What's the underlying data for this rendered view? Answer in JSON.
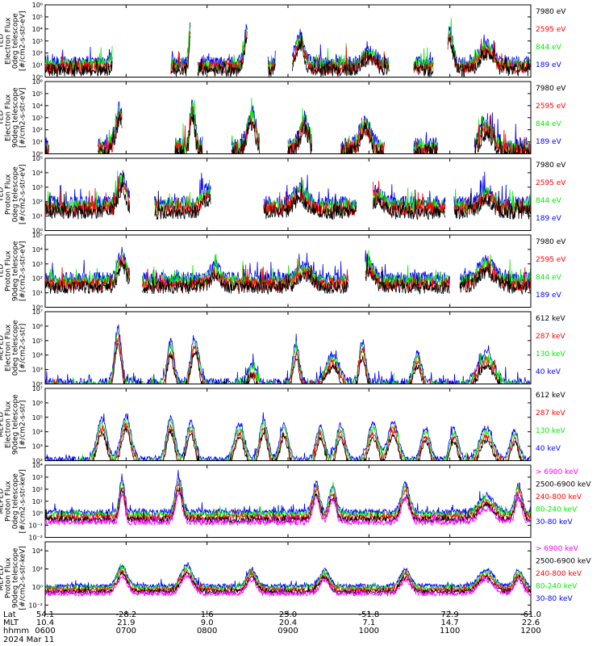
{
  "figure": {
    "date": "2024 Mar 11",
    "colors": {
      "black": "#000000",
      "red": "#ff0000",
      "green": "#00ee00",
      "blue": "#0000ff",
      "magenta": "#ff00ff",
      "axis": "#000000"
    }
  },
  "x_axis": {
    "row_labels": [
      "Lat",
      "MLT",
      "hhmm"
    ],
    "ticks": [
      {
        "lat": "54.1",
        "mlt": "10.4",
        "time": "0600"
      },
      {
        "lat": "-28.2",
        "mlt": "21.9",
        "time": "0700"
      },
      {
        "lat": "1.6",
        "mlt": "9.0",
        "time": "0800"
      },
      {
        "lat": "25.0",
        "mlt": "20.4",
        "time": "0900"
      },
      {
        "lat": "-51.8",
        "mlt": "7.1",
        "time": "1000"
      },
      {
        "lat": "72.9",
        "mlt": "14.7",
        "time": "1100"
      },
      {
        "lat": "-61.0",
        "mlt": "22.6",
        "time": "1200"
      }
    ]
  },
  "chart_data": [
    {
      "type": "line",
      "ylabel_lines": [
        "TED",
        "Electron Flux",
        "0deg telescope",
        "[#/cm2-s-str-eV]"
      ],
      "y_scale": "log",
      "ylim_exp": [
        0,
        6
      ],
      "ytick_labels": [
        "10⁰",
        "10¹",
        "10²",
        "10³",
        "10⁴",
        "10⁵",
        "10⁶"
      ],
      "series": [
        {
          "name": "7980 eV",
          "color": "black"
        },
        {
          "name": "2595 eV",
          "color": "red"
        },
        {
          "name": "844 eV",
          "color": "green"
        },
        {
          "name": "189 eV",
          "color": "blue"
        }
      ],
      "x_hours": [
        6,
        12
      ],
      "baseline_exp": 1.2,
      "noise": 0.55,
      "gaps": [
        [
          6.83,
          7.55
        ],
        [
          7.8,
          7.88
        ],
        [
          8.5,
          8.75
        ],
        [
          8.85,
          9.05
        ],
        [
          10.25,
          10.55
        ],
        [
          10.8,
          10.97
        ]
      ],
      "peaks": [
        {
          "t": 6.92,
          "amp": 2.8,
          "w": 0.05
        },
        {
          "t": 7.8,
          "amp": 3.4,
          "w": 0.02
        },
        {
          "t": 8.5,
          "amp": 2.9,
          "w": 0.04
        },
        {
          "t": 9.15,
          "amp": 2.3,
          "w": 0.05
        },
        {
          "t": 10.0,
          "amp": 1.0,
          "w": 0.08
        },
        {
          "t": 11.0,
          "amp": 2.6,
          "w": 0.04
        },
        {
          "t": 11.45,
          "amp": 1.5,
          "w": 0.08
        }
      ]
    },
    {
      "type": "line",
      "ylabel_lines": [
        "TED",
        "Electron Flux",
        "90deg telescope",
        "[#/cm2-s-str-eV]"
      ],
      "y_scale": "log",
      "ylim_exp": [
        0,
        6
      ],
      "ytick_labels": [
        "10⁰",
        "10¹",
        "10²",
        "10³",
        "10⁴",
        "10⁵",
        "10⁶"
      ],
      "series": [
        {
          "name": "7980 eV",
          "color": "black"
        },
        {
          "name": "2595 eV",
          "color": "red"
        },
        {
          "name": "844 eV",
          "color": "green"
        },
        {
          "name": "189 eV",
          "color": "blue"
        }
      ],
      "x_hours": [
        6,
        12
      ],
      "baseline_exp": 0.7,
      "noise": 0.7,
      "gaps": [
        [
          6.05,
          6.65
        ],
        [
          6.95,
          7.6
        ],
        [
          7.95,
          8.3
        ],
        [
          8.65,
          9.0
        ],
        [
          9.3,
          9.65
        ],
        [
          10.2,
          10.55
        ],
        [
          10.85,
          11.3
        ]
      ],
      "peaks": [
        {
          "t": 6.92,
          "amp": 3.0,
          "w": 0.05
        },
        {
          "t": 7.82,
          "amp": 3.5,
          "w": 0.03
        },
        {
          "t": 8.55,
          "amp": 2.8,
          "w": 0.05
        },
        {
          "t": 9.2,
          "amp": 2.3,
          "w": 0.05
        },
        {
          "t": 9.95,
          "amp": 2.1,
          "w": 0.06
        },
        {
          "t": 11.0,
          "amp": 3.0,
          "w": 0.04
        },
        {
          "t": 11.45,
          "amp": 1.9,
          "w": 0.08
        }
      ]
    },
    {
      "type": "line",
      "ylabel_lines": [
        "TED",
        "Proton Flux",
        "0deg telescope",
        "[#/cm2-s-str-eV]"
      ],
      "y_scale": "log",
      "ylim_exp": [
        0,
        5
      ],
      "ytick_labels": [
        "10⁰",
        "10¹",
        "10²",
        "10³",
        "10⁴",
        "10⁵"
      ],
      "series": [
        {
          "name": "7980 eV",
          "color": "black"
        },
        {
          "name": "2595 eV",
          "color": "red"
        },
        {
          "name": "844 eV",
          "color": "green"
        },
        {
          "name": "189 eV",
          "color": "blue"
        }
      ],
      "x_hours": [
        6,
        12
      ],
      "baseline_exp": 1.9,
      "noise": 0.5,
      "gaps": [
        [
          7.05,
          7.35
        ],
        [
          8.05,
          8.7
        ],
        [
          9.85,
          10.05
        ],
        [
          10.95,
          11.05
        ]
      ],
      "peaks": [
        {
          "t": 6.95,
          "amp": 1.9,
          "w": 0.05
        },
        {
          "t": 8.0,
          "amp": 1.0,
          "w": 0.06
        },
        {
          "t": 9.15,
          "amp": 1.0,
          "w": 0.08
        },
        {
          "t": 10.1,
          "amp": 0.8,
          "w": 0.08
        },
        {
          "t": 11.45,
          "amp": 0.9,
          "w": 0.08
        }
      ]
    },
    {
      "type": "line",
      "ylabel_lines": [
        "TED",
        "Proton Flux",
        "90deg telescope",
        "[#/cm2-s-str-eV]"
      ],
      "y_scale": "log",
      "ylim_exp": [
        0,
        5
      ],
      "ytick_labels": [
        "10⁰",
        "10¹",
        "10²",
        "10³",
        "10⁴",
        "10⁵"
      ],
      "series": [
        {
          "name": "7980 eV",
          "color": "black"
        },
        {
          "name": "2595 eV",
          "color": "red"
        },
        {
          "name": "844 eV",
          "color": "green"
        },
        {
          "name": "189 eV",
          "color": "blue"
        }
      ],
      "x_hours": [
        6,
        12
      ],
      "baseline_exp": 2.0,
      "noise": 0.45,
      "gaps": [
        [
          7.05,
          7.2
        ],
        [
          9.75,
          9.95
        ],
        [
          11.0,
          11.12
        ]
      ],
      "peaks": [
        {
          "t": 6.95,
          "amp": 1.8,
          "w": 0.05
        },
        {
          "t": 8.1,
          "amp": 0.9,
          "w": 0.06
        },
        {
          "t": 9.2,
          "amp": 0.9,
          "w": 0.08
        },
        {
          "t": 10.0,
          "amp": 1.1,
          "w": 0.06
        },
        {
          "t": 11.45,
          "amp": 1.2,
          "w": 0.1
        }
      ]
    },
    {
      "type": "line",
      "ylabel_lines": [
        "MEPED",
        "Electron Flux",
        "0deg telescope",
        "[#/cm2-s-str]"
      ],
      "y_scale": "log",
      "ylim_exp": [
        2,
        7
      ],
      "ytick_labels": [
        "10²",
        "10³",
        "10⁴",
        "10⁵",
        "10⁶",
        "10⁷"
      ],
      "series": [
        {
          "name": "612 keV",
          "color": "black"
        },
        {
          "name": "287 keV",
          "color": "red"
        },
        {
          "name": "130 keV",
          "color": "green"
        },
        {
          "name": "40 keV",
          "color": "blue"
        }
      ],
      "x_hours": [
        6,
        12
      ],
      "baseline_exp": 2.1,
      "noise": 0.3,
      "gaps": [],
      "peaks": [
        {
          "t": 6.9,
          "amp": 3.8,
          "w": 0.04
        },
        {
          "t": 7.55,
          "amp": 2.8,
          "w": 0.04
        },
        {
          "t": 7.85,
          "amp": 3.1,
          "w": 0.05
        },
        {
          "t": 8.55,
          "amp": 1.2,
          "w": 0.05
        },
        {
          "t": 9.1,
          "amp": 2.6,
          "w": 0.04
        },
        {
          "t": 9.55,
          "amp": 1.9,
          "w": 0.08
        },
        {
          "t": 9.92,
          "amp": 2.8,
          "w": 0.04
        },
        {
          "t": 10.6,
          "amp": 2.0,
          "w": 0.05
        },
        {
          "t": 11.45,
          "amp": 2.0,
          "w": 0.1
        }
      ]
    },
    {
      "type": "line",
      "ylabel_lines": [
        "MEPED",
        "Electron Flux",
        "90deg telescope",
        "[#/cm2-s-str]"
      ],
      "y_scale": "log",
      "ylim_exp": [
        2,
        7
      ],
      "ytick_labels": [
        "10²",
        "10³",
        "10⁴",
        "10⁵",
        "10⁶",
        "10⁷"
      ],
      "series": [
        {
          "name": "612 keV",
          "color": "black"
        },
        {
          "name": "287 keV",
          "color": "red"
        },
        {
          "name": "130 keV",
          "color": "green"
        },
        {
          "name": "40 keV",
          "color": "blue"
        }
      ],
      "x_hours": [
        6,
        12
      ],
      "baseline_exp": 2.1,
      "noise": 0.2,
      "gaps": [],
      "peaks": [
        {
          "t": 6.7,
          "amp": 2.8,
          "w": 0.06
        },
        {
          "t": 7.0,
          "amp": 3.0,
          "w": 0.06
        },
        {
          "t": 7.55,
          "amp": 2.9,
          "w": 0.05
        },
        {
          "t": 7.8,
          "amp": 2.6,
          "w": 0.05
        },
        {
          "t": 8.4,
          "amp": 2.4,
          "w": 0.06
        },
        {
          "t": 8.7,
          "amp": 2.7,
          "w": 0.05
        },
        {
          "t": 8.95,
          "amp": 2.4,
          "w": 0.05
        },
        {
          "t": 9.4,
          "amp": 2.3,
          "w": 0.05
        },
        {
          "t": 9.65,
          "amp": 2.4,
          "w": 0.05
        },
        {
          "t": 10.05,
          "amp": 2.4,
          "w": 0.06
        },
        {
          "t": 10.3,
          "amp": 2.6,
          "w": 0.06
        },
        {
          "t": 10.7,
          "amp": 2.2,
          "w": 0.05
        },
        {
          "t": 11.05,
          "amp": 2.1,
          "w": 0.05
        },
        {
          "t": 11.45,
          "amp": 2.2,
          "w": 0.08
        },
        {
          "t": 11.8,
          "amp": 2.0,
          "w": 0.05
        }
      ]
    },
    {
      "type": "line",
      "ylabel_lines": [
        "MEPED",
        "Proton Flux",
        "0deg telescope",
        "[#/cm2-s-str-keV]"
      ],
      "y_scale": "log",
      "ylim_exp": [
        -2,
        4
      ],
      "ytick_labels": [
        "10⁻²",
        "10⁻¹",
        "10⁰",
        "10¹",
        "10²",
        "10³",
        "10⁴"
      ],
      "series": [
        {
          "name": "> 6900 keV",
          "color": "magenta"
        },
        {
          "name": "2500-6900 keV",
          "color": "black"
        },
        {
          "name": "240-800 keV",
          "color": "red"
        },
        {
          "name": "80-240 keV",
          "color": "green"
        },
        {
          "name": "30-80 keV",
          "color": "blue"
        }
      ],
      "x_hours": [
        6,
        12
      ],
      "baseline_exp": 0.1,
      "noise": 0.25,
      "gaps": [],
      "peaks": [
        {
          "t": 6.95,
          "amp": 2.8,
          "w": 0.03
        },
        {
          "t": 7.65,
          "amp": 2.9,
          "w": 0.04
        },
        {
          "t": 9.35,
          "amp": 2.4,
          "w": 0.04
        },
        {
          "t": 9.55,
          "amp": 2.2,
          "w": 0.04
        },
        {
          "t": 10.45,
          "amp": 2.3,
          "w": 0.05
        },
        {
          "t": 11.45,
          "amp": 1.4,
          "w": 0.09
        },
        {
          "t": 11.85,
          "amp": 2.3,
          "w": 0.04
        }
      ]
    },
    {
      "type": "line",
      "ylabel_lines": [
        "MEPED",
        "Proton Flux",
        "90deg telescope",
        "[#/cm2-s-str-keV]"
      ],
      "y_scale": "log",
      "ylim_exp": [
        -3,
        5
      ],
      "ytick_labels": [
        "10⁻²",
        "10⁰",
        "10²",
        "10⁴"
      ],
      "ytick_exps": [
        -2,
        0,
        2,
        4
      ],
      "series": [
        {
          "name": "> 6900 keV",
          "color": "magenta"
        },
        {
          "name": "2500-6900 keV",
          "color": "black"
        },
        {
          "name": "240-800 keV",
          "color": "red"
        },
        {
          "name": "80-240 keV",
          "color": "green"
        },
        {
          "name": "30-80 keV",
          "color": "blue"
        }
      ],
      "x_hours": [
        6,
        12
      ],
      "baseline_exp": 0.1,
      "noise": 0.25,
      "gaps": [],
      "peaks": [
        {
          "t": 6.95,
          "amp": 2.2,
          "w": 0.06
        },
        {
          "t": 7.75,
          "amp": 2.3,
          "w": 0.07
        },
        {
          "t": 8.55,
          "amp": 1.8,
          "w": 0.06
        },
        {
          "t": 9.45,
          "amp": 1.8,
          "w": 0.06
        },
        {
          "t": 10.45,
          "amp": 1.8,
          "w": 0.06
        },
        {
          "t": 11.45,
          "amp": 1.8,
          "w": 0.09
        },
        {
          "t": 11.85,
          "amp": 1.8,
          "w": 0.05
        }
      ]
    }
  ]
}
